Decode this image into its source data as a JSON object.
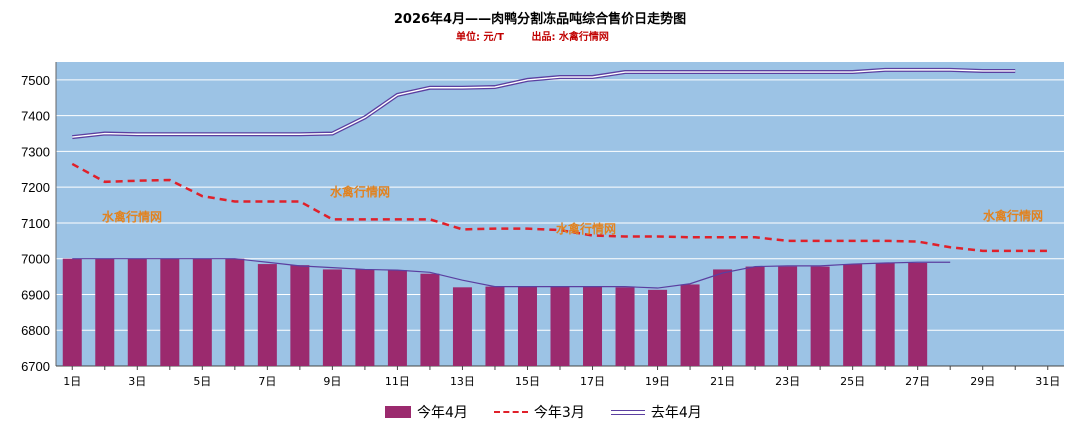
{
  "chart_data": {
    "type": "bar",
    "title": "2026年4月——肉鸭分割冻品吨综合售价日走势图",
    "unit_label": "单位: 元/T",
    "source_label": "出品: 水禽行情网",
    "ylim": [
      6700,
      7550
    ],
    "yticks": [
      6700,
      6800,
      6900,
      7000,
      7100,
      7200,
      7300,
      7400,
      7500
    ],
    "days": 31,
    "xtick_labels": [
      "1日",
      "3日",
      "5日",
      "7日",
      "9日",
      "11日",
      "13日",
      "15日",
      "17日",
      "19日",
      "21日",
      "23日",
      "25日",
      "27日",
      "29日",
      "31日"
    ],
    "series": [
      {
        "name": "今年4月",
        "kind": "bar",
        "color": "#9b2a6e",
        "values": [
          7000,
          7000,
          7000,
          7000,
          7000,
          7000,
          6985,
          6982,
          6970,
          6970,
          6968,
          6958,
          6920,
          6922,
          6922,
          6922,
          6922,
          6920,
          6913,
          6928,
          6970,
          6978,
          6978,
          6978,
          6985,
          6988,
          6988
        ]
      },
      {
        "name": "今年3月",
        "kind": "line-dashed",
        "color": "#e0202a",
        "values": [
          7265,
          7215,
          7218,
          7220,
          7175,
          7160,
          7160,
          7160,
          7110,
          7110,
          7110,
          7110,
          7082,
          7084,
          7084,
          7080,
          7065,
          7062,
          7062,
          7060,
          7060,
          7060,
          7050,
          7050,
          7050,
          7050,
          7048,
          7032,
          7022,
          7022,
          7022
        ]
      },
      {
        "name": "去年4月",
        "kind": "line-double",
        "color": "#5b3fa0",
        "values": [
          7340,
          7350,
          7348,
          7348,
          7348,
          7348,
          7348,
          7348,
          7350,
          7395,
          7458,
          7478,
          7478,
          7480,
          7500,
          7508,
          7508,
          7522,
          7522,
          7522,
          7522,
          7522,
          7522,
          7522,
          7522,
          7528,
          7528,
          7528,
          7525,
          7525
        ]
      },
      {
        "name": "去年4月-tail",
        "kind": "line",
        "color": "#5b3fa0",
        "hidden_in_legend": true,
        "values": [
          7000,
          7000,
          7000,
          7000,
          7000,
          7000,
          6990,
          6980,
          6975,
          6970,
          6968,
          6962,
          6940,
          6922,
          6922,
          6922,
          6922,
          6922,
          6918,
          6930,
          6960,
          6978,
          6980,
          6980,
          6985,
          6988,
          6990,
          6990
        ]
      }
    ],
    "watermark": "水禽行情网",
    "legend": [
      "今年4月",
      "今年3月",
      "去年4月"
    ]
  }
}
